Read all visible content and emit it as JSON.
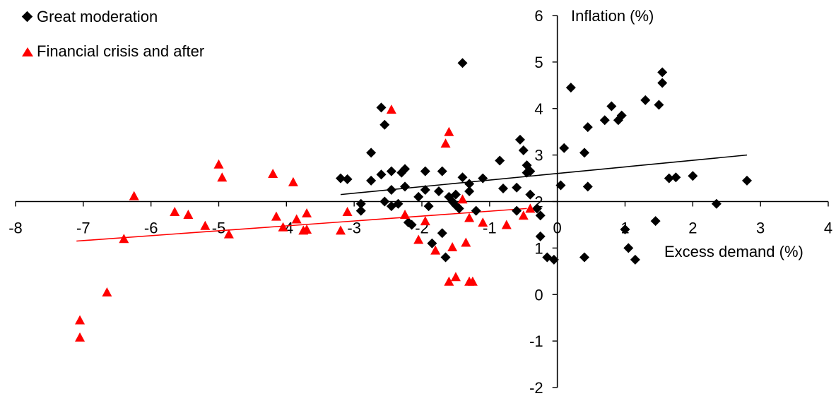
{
  "chart_data": {
    "type": "scatter",
    "title": "",
    "xlabel": "Excess demand (%)",
    "ylabel": "Inflation (%)",
    "xlim": [
      -8,
      4
    ],
    "ylim": [
      -2,
      6
    ],
    "x_ticks": [
      "-8",
      "-7",
      "-6",
      "-5",
      "-4",
      "-3",
      "-2",
      "-1",
      "0",
      "1",
      "2",
      "3",
      "4"
    ],
    "y_ticks": [
      "-2",
      "-1",
      "0",
      "1",
      "2",
      "3",
      "4",
      "5",
      "6"
    ],
    "grid": false,
    "legend_position": "top-left",
    "series": [
      {
        "name": "Great moderation",
        "marker": "diamond",
        "color": "#000000",
        "points": [
          [
            -3.2,
            2.5
          ],
          [
            -3.1,
            2.48
          ],
          [
            -2.9,
            1.95
          ],
          [
            -2.9,
            1.8
          ],
          [
            -2.75,
            3.05
          ],
          [
            -2.75,
            2.45
          ],
          [
            -2.6,
            4.02
          ],
          [
            -2.6,
            2.58
          ],
          [
            -2.55,
            3.65
          ],
          [
            -2.55,
            2.0
          ],
          [
            -2.45,
            2.65
          ],
          [
            -2.45,
            2.25
          ],
          [
            -2.45,
            1.9
          ],
          [
            -2.35,
            1.95
          ],
          [
            -2.3,
            2.62
          ],
          [
            -2.25,
            2.7
          ],
          [
            -2.25,
            2.32
          ],
          [
            -2.2,
            1.55
          ],
          [
            -2.15,
            1.5
          ],
          [
            -2.05,
            2.1
          ],
          [
            -1.95,
            2.65
          ],
          [
            -1.95,
            2.25
          ],
          [
            -1.9,
            1.9
          ],
          [
            -1.85,
            1.1
          ],
          [
            -1.75,
            2.22
          ],
          [
            -1.7,
            1.32
          ],
          [
            -1.7,
            2.65
          ],
          [
            -1.65,
            0.8
          ],
          [
            -1.6,
            2.1
          ],
          [
            -1.55,
            2.0
          ],
          [
            -1.5,
            2.15
          ],
          [
            -1.5,
            1.92
          ],
          [
            -1.45,
            1.85
          ],
          [
            -1.4,
            4.98
          ],
          [
            -1.4,
            2.52
          ],
          [
            -1.3,
            2.22
          ],
          [
            -1.3,
            2.38
          ],
          [
            -1.2,
            1.8
          ],
          [
            -1.1,
            2.5
          ],
          [
            -0.85,
            2.88
          ],
          [
            -0.8,
            2.28
          ],
          [
            -0.6,
            1.8
          ],
          [
            -0.6,
            2.3
          ],
          [
            -0.55,
            3.33
          ],
          [
            -0.5,
            3.1
          ],
          [
            -0.45,
            2.78
          ],
          [
            -0.45,
            2.62
          ],
          [
            -0.4,
            2.65
          ],
          [
            -0.4,
            2.15
          ],
          [
            -0.3,
            1.85
          ],
          [
            -0.25,
            1.7
          ],
          [
            -0.25,
            1.25
          ],
          [
            -0.15,
            0.8
          ],
          [
            -0.05,
            0.75
          ],
          [
            0.05,
            2.35
          ],
          [
            0.1,
            3.15
          ],
          [
            0.2,
            4.45
          ],
          [
            0.4,
            0.8
          ],
          [
            0.4,
            3.05
          ],
          [
            0.45,
            3.6
          ],
          [
            0.45,
            2.32
          ],
          [
            0.7,
            3.75
          ],
          [
            0.8,
            4.05
          ],
          [
            0.9,
            3.75
          ],
          [
            0.95,
            3.85
          ],
          [
            1.0,
            1.4
          ],
          [
            1.05,
            1.0
          ],
          [
            1.15,
            0.75
          ],
          [
            1.3,
            4.18
          ],
          [
            1.45,
            1.58
          ],
          [
            1.5,
            4.08
          ],
          [
            1.55,
            4.55
          ],
          [
            1.55,
            4.78
          ],
          [
            1.65,
            2.5
          ],
          [
            1.75,
            2.52
          ],
          [
            2.0,
            2.55
          ],
          [
            2.35,
            1.95
          ],
          [
            2.8,
            2.45
          ]
        ],
        "trendline": [
          [
            -3.2,
            2.15
          ],
          [
            2.8,
            3.0
          ]
        ]
      },
      {
        "name": "Financial crisis and after",
        "marker": "triangle",
        "color": "#ff0000",
        "points": [
          [
            -7.05,
            -0.55
          ],
          [
            -7.05,
            -0.92
          ],
          [
            -6.65,
            0.05
          ],
          [
            -6.4,
            1.2
          ],
          [
            -6.25,
            2.12
          ],
          [
            -5.65,
            1.78
          ],
          [
            -5.45,
            1.72
          ],
          [
            -5.2,
            1.48
          ],
          [
            -5.0,
            2.8
          ],
          [
            -4.95,
            2.52
          ],
          [
            -4.85,
            1.3
          ],
          [
            -4.2,
            2.6
          ],
          [
            -4.15,
            1.68
          ],
          [
            -4.05,
            1.45
          ],
          [
            -3.9,
            2.42
          ],
          [
            -3.85,
            1.62
          ],
          [
            -3.75,
            1.38
          ],
          [
            -3.7,
            1.75
          ],
          [
            -3.7,
            1.4
          ],
          [
            -3.2,
            1.38
          ],
          [
            -3.1,
            1.78
          ],
          [
            -2.45,
            3.98
          ],
          [
            -2.25,
            1.72
          ],
          [
            -2.05,
            1.18
          ],
          [
            -1.95,
            1.58
          ],
          [
            -1.8,
            0.95
          ],
          [
            -1.65,
            3.25
          ],
          [
            -1.6,
            3.5
          ],
          [
            -1.6,
            0.28
          ],
          [
            -1.55,
            1.02
          ],
          [
            -1.5,
            0.38
          ],
          [
            -1.4,
            2.05
          ],
          [
            -1.35,
            1.12
          ],
          [
            -1.3,
            1.65
          ],
          [
            -1.3,
            0.28
          ],
          [
            -1.25,
            0.28
          ],
          [
            -1.1,
            1.55
          ],
          [
            -0.75,
            1.5
          ],
          [
            -0.5,
            1.7
          ],
          [
            -0.4,
            1.85
          ]
        ],
        "trendline": [
          [
            -7.1,
            1.15
          ],
          [
            -0.45,
            1.85
          ]
        ]
      }
    ]
  }
}
